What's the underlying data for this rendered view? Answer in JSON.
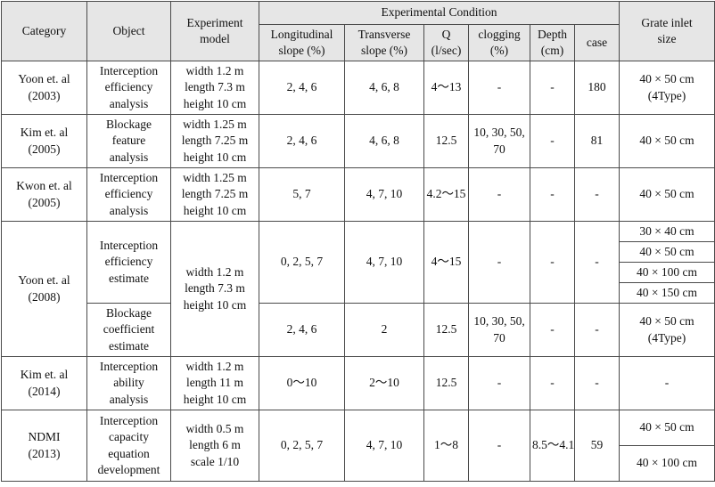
{
  "header": {
    "category": "Category",
    "object": "Object",
    "model": "Experiment\nmodel",
    "condition_group": "Experimental Condition",
    "longitudinal": "Longitudinal\nslope (%)",
    "transverse": "Transverse\nslope (%)",
    "q": "Q\n(l/sec)",
    "clogging": "clogging\n(%)",
    "depth": "Depth\n(cm)",
    "case": "case",
    "grate": "Grate inlet\nsize"
  },
  "rows": [
    {
      "category": "Yoon et. al\n(2003)",
      "object": "Interception\nefficiency\nanalysis",
      "model": "width 1.2 m\nlength 7.3 m\nheight 10 cm",
      "longitudinal": "2, 4, 6",
      "transverse": "4, 6, 8",
      "q": "4～13",
      "clogging": "-",
      "depth": "-",
      "case": "180",
      "grate": "40 × 50 cm\n(4Type)"
    },
    {
      "category": "Kim et. al\n(2005)",
      "object": "Blockage\nfeature\nanalysis",
      "model": "width 1.25 m\nlength 7.25 m\nheight 10 cm",
      "longitudinal": "2, 4, 6",
      "transverse": "4, 6, 8",
      "q": "12.5",
      "clogging": "10, 30, 50,\n70",
      "depth": "-",
      "case": "81",
      "grate": "40 × 50 cm"
    },
    {
      "category": "Kwon et. al\n(2005)",
      "object": "Interception\nefficiency\nanalysis",
      "model": "width 1.25 m\nlength 7.25 m\nheight 10 cm",
      "longitudinal": "5, 7",
      "transverse": "4, 7, 10",
      "q": "4.2～15",
      "clogging": "-",
      "depth": "-",
      "case": "-",
      "grate": "40 × 50 cm"
    },
    {
      "category": "Yoon et. al\n(2008)",
      "model": "width 1.2 m\nlength 7.3 m\nheight 10 cm",
      "sub": [
        {
          "object": "Interception\nefficiency\nestimate",
          "longitudinal": "0, 2, 5, 7",
          "transverse": "4, 7, 10",
          "q": "4～15",
          "clogging": "-",
          "depth": "-",
          "case": "-",
          "grate": [
            "30 × 40 cm",
            "40 × 50 cm",
            "40 × 100 cm",
            "40 × 150 cm"
          ]
        },
        {
          "object": "Blockage\ncoefficient\nestimate",
          "longitudinal": "2, 4, 6",
          "transverse": "2",
          "q": "12.5",
          "clogging": "10, 30, 50,\n70",
          "depth": "-",
          "case": "-",
          "grate": "40 × 50 cm\n(4Type)"
        }
      ]
    },
    {
      "category": "Kim et. al\n(2014)",
      "object": "Interception\nability\nanalysis",
      "model": "width 1.2 m\nlength 11 m\nheight 10 cm",
      "longitudinal": "0～10",
      "transverse": "2～10",
      "q": "12.5",
      "clogging": "-",
      "depth": "-",
      "case": "-",
      "grate": "-"
    },
    {
      "category": "NDMI\n(2013)",
      "object": "Interception\ncapacity\nequation\ndevelopment",
      "model": "width 0.5 m\nlength 6 m\nscale 1/10",
      "longitudinal": "0, 2, 5, 7",
      "transverse": "4, 7, 10",
      "q": "1～8",
      "clogging": "-",
      "depth": "8.5～4.1",
      "case": "59",
      "grate": [
        "40 × 50 cm",
        "40 × 100 cm"
      ]
    }
  ]
}
